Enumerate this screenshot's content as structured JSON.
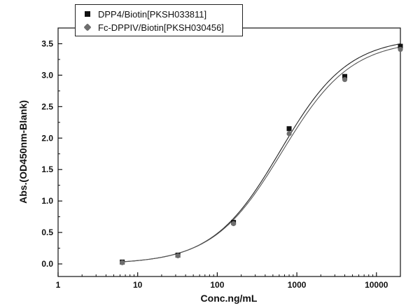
{
  "chart_data": {
    "type": "scatter",
    "xlabel": "Conc.ng/mL",
    "ylabel": "Abs.(OD450nm-Blank)",
    "x_scale": "log",
    "xlim": [
      1,
      20000
    ],
    "ylim": [
      -0.2,
      3.75
    ],
    "x_ticks": [
      "1",
      "10",
      "100",
      "1000",
      "10000"
    ],
    "y_ticks": [
      "0.0",
      "0.5",
      "1.0",
      "1.5",
      "2.0",
      "2.5",
      "3.0",
      "3.5"
    ],
    "legend_position": "top-left",
    "series": [
      {
        "name": "DPP4/Biotin[PKSH033811]",
        "marker": "square",
        "color": "#111111",
        "x": [
          6.4,
          32,
          160,
          800,
          4000,
          20000
        ],
        "values": [
          0.03,
          0.14,
          0.66,
          2.15,
          2.98,
          3.46
        ],
        "fit": true
      },
      {
        "name": "Fc-DPPIV/Biotin[PKSH030456]",
        "marker": "diamond",
        "color": "#6e6e6e",
        "x": [
          6.4,
          32,
          160,
          800,
          4000,
          20000
        ],
        "values": [
          0.02,
          0.13,
          0.64,
          2.07,
          2.93,
          3.41
        ],
        "fit": true
      }
    ]
  }
}
